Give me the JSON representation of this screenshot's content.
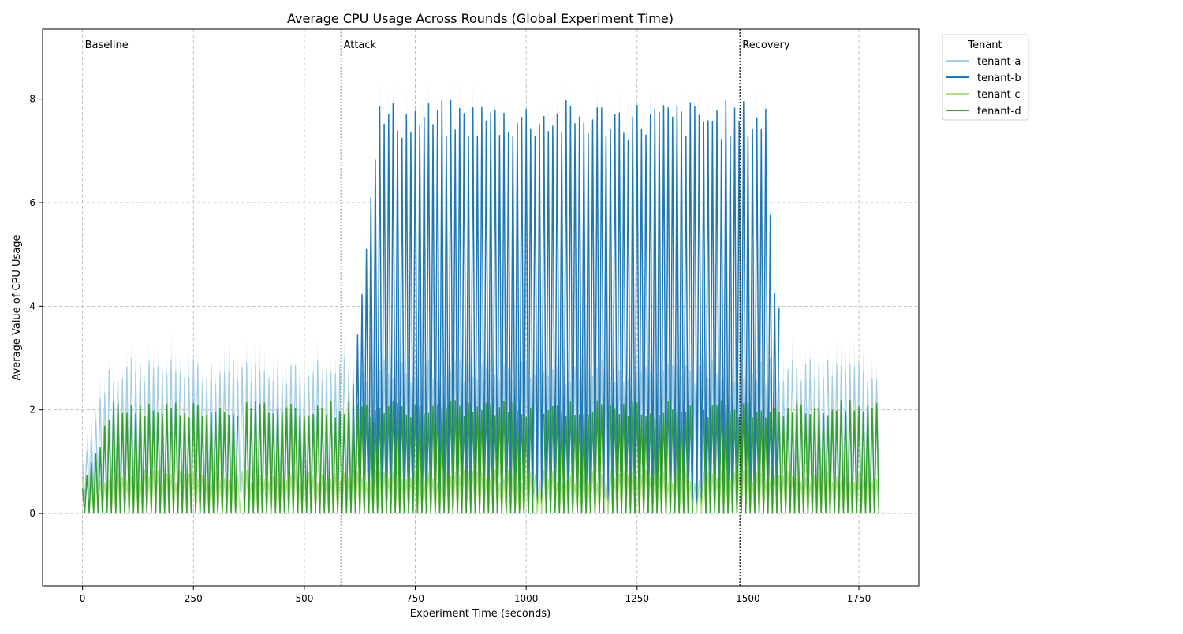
{
  "chart_data": {
    "type": "line",
    "title": "Average CPU Usage Across Rounds (Global Experiment Time)",
    "xlabel": "Experiment Time (seconds)",
    "ylabel": "Average Value of CPU Usage",
    "xlim": [
      -90,
      1885
    ],
    "ylim": [
      -1.4,
      9.35
    ],
    "xticks": [
      0,
      250,
      500,
      750,
      1000,
      1250,
      1500,
      1750
    ],
    "yticks": [
      0,
      2,
      4,
      6,
      8
    ],
    "grid": true,
    "legend": {
      "title": "Tenant",
      "placement": "outside top-right",
      "entries": [
        "tenant-a",
        "tenant-b",
        "tenant-c",
        "tenant-d"
      ]
    },
    "phases": [
      {
        "label": "Baseline",
        "start": 0,
        "marker_line": false
      },
      {
        "label": "Attack",
        "start": 583,
        "marker_line": true
      },
      {
        "label": "Recovery",
        "start": 1482,
        "marker_line": true
      }
    ],
    "sample_interval_seconds": 5,
    "x_end": 1795,
    "series": [
      {
        "name": "tenant-a",
        "color": "#a6cee3",
        "baseline_high": 2.75,
        "baseline_low": 0.0,
        "ci_upper_peak": 8.8,
        "ci_lower_min": -0.9,
        "note_profile": "ramps 0-2.8 over 0-60s, oscillates 0-2.8 after"
      },
      {
        "name": "tenant-b",
        "color": "#1f78b4",
        "attack_high": 8.0,
        "attack_low": 0.0,
        "active_ranges": [
          [
            610,
            1570
          ]
        ],
        "note_profile": "oscillates up to ~8 during attack"
      },
      {
        "name": "tenant-c",
        "color": "#b2df8a",
        "baseline_high": 0.85,
        "baseline_low": 0.0
      },
      {
        "name": "tenant-d",
        "color": "#33a02c",
        "baseline_high": 2.1,
        "baseline_low": 0.0,
        "gaps": [
          [
            355,
            362
          ],
          [
            1020,
            1035
          ],
          [
            1178,
            1185
          ],
          [
            1380,
            1395
          ]
        ]
      }
    ]
  }
}
